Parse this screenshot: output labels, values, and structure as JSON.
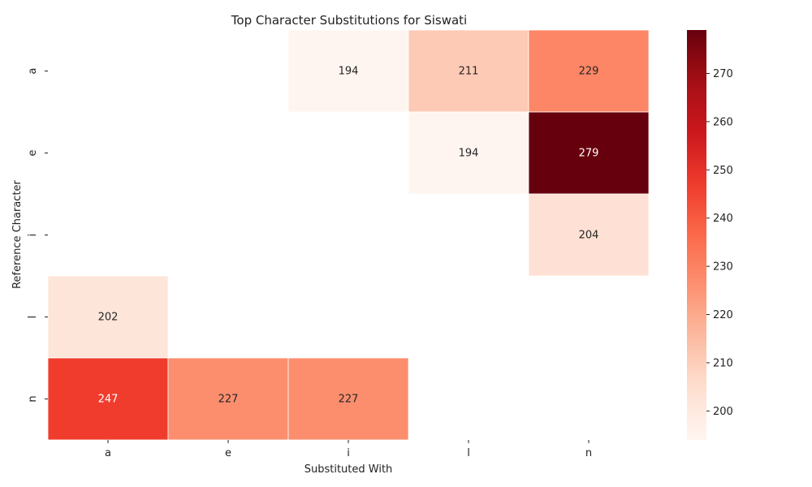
{
  "chart_data": {
    "type": "heatmap",
    "title": "Top Character Substitutions for Siswati",
    "xlabel": "Substituted With",
    "ylabel": "Reference Character",
    "x_categories": [
      "a",
      "e",
      "i",
      "l",
      "n"
    ],
    "y_categories": [
      "a",
      "e",
      "i",
      "l",
      "n"
    ],
    "values": [
      [
        null,
        null,
        194,
        211,
        229
      ],
      [
        null,
        null,
        null,
        194,
        279
      ],
      [
        null,
        null,
        null,
        null,
        204
      ],
      [
        202,
        null,
        null,
        null,
        null
      ],
      [
        247,
        227,
        227,
        null,
        null
      ]
    ],
    "color_range": [
      194,
      279
    ],
    "colormap": "Reds",
    "colorbar_ticks": [
      200,
      210,
      220,
      230,
      240,
      250,
      260,
      270
    ]
  }
}
